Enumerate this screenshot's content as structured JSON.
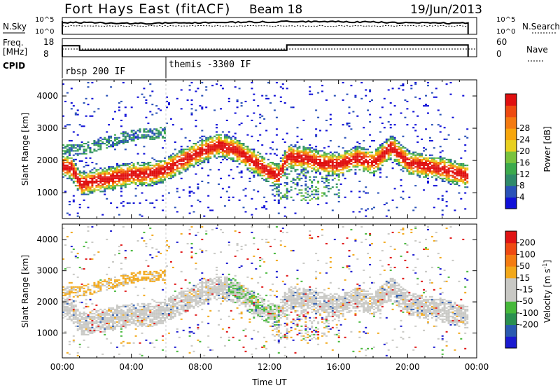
{
  "header": {
    "station": "Fort Hays East (fitACF)",
    "beam": "Beam 18",
    "date": "19/Jun/2013"
  },
  "nsky_panel": {
    "left_label": "N.Sky",
    "right_label": "N.Search",
    "left_ticks": [
      "10^5",
      "10^0"
    ],
    "right_ticks": [
      "10^5",
      "10^0"
    ]
  },
  "freq_panel": {
    "left_label_1": "Freq.",
    "left_label_2": "[MHz]",
    "left_ticks": [
      "18",
      "8"
    ],
    "right_ticks": [
      "60",
      "0"
    ],
    "right_label": "Nave",
    "freq_steps": [
      {
        "from_hour": 0.0,
        "to_hour": 1.0,
        "mhz": 14.5
      },
      {
        "from_hour": 1.0,
        "to_hour": 13.0,
        "mhz": 11.0
      },
      {
        "from_hour": 13.0,
        "to_hour": 23.5,
        "mhz": 15.0
      }
    ]
  },
  "cpid": {
    "label": "CPID",
    "segments": [
      {
        "start_hour": 0.0,
        "text": "rbsp 200 IF"
      },
      {
        "start_hour": 6.0,
        "text": "themis -3300 IF"
      }
    ]
  },
  "chart_data": [
    {
      "type": "heatmap",
      "name": "power",
      "ylabel": "Slant Range [km]",
      "xlabel": "",
      "xlim_hours": [
        0,
        24
      ],
      "ylim": [
        200,
        4500
      ],
      "y_ticks": [
        "1000",
        "2000",
        "3000",
        "4000"
      ],
      "x_ticks": [
        "00:00",
        "04:00",
        "08:00",
        "12:00",
        "16:00",
        "20:00",
        "00:00"
      ],
      "colorbar": {
        "label": "Power [dB]",
        "ticks": [
          "4",
          "8",
          "12",
          "16",
          "20",
          "24",
          "28"
        ],
        "colors": [
          "#1010d8",
          "#2a52b8",
          "#2f8a6a",
          "#3caa4c",
          "#79c33d",
          "#e8d020",
          "#f7a60c",
          "#f47a10",
          "#ee4a10",
          "#e01010"
        ]
      },
      "main_band_km": [
        [
          0,
          1800
        ],
        [
          0.5,
          1750
        ],
        [
          1,
          1250
        ],
        [
          2,
          1350
        ],
        [
          3,
          1450
        ],
        [
          4,
          1550
        ],
        [
          5,
          1550
        ],
        [
          6,
          1700
        ],
        [
          7,
          2000
        ],
        [
          8,
          2250
        ],
        [
          9,
          2450
        ],
        [
          10,
          2300
        ],
        [
          11,
          1950
        ],
        [
          12,
          1600
        ],
        [
          12.5,
          1500
        ],
        [
          13,
          2100
        ],
        [
          14,
          2050
        ],
        [
          15,
          1900
        ],
        [
          16,
          1850
        ],
        [
          17,
          2050
        ],
        [
          18,
          1900
        ],
        [
          19,
          2400
        ],
        [
          20,
          1900
        ],
        [
          21,
          1800
        ],
        [
          22,
          1700
        ],
        [
          23,
          1550
        ],
        [
          23.5,
          1500
        ]
      ],
      "upper_band_km": [
        [
          0,
          2300
        ],
        [
          1,
          2300
        ],
        [
          2,
          2450
        ],
        [
          3,
          2600
        ],
        [
          4,
          2750
        ],
        [
          5,
          2800
        ],
        [
          6,
          2850
        ]
      ]
    },
    {
      "type": "heatmap",
      "name": "velocity",
      "ylabel": "Slant Range [km]",
      "xlabel": "Time UT",
      "xlim_hours": [
        0,
        24
      ],
      "ylim": [
        200,
        4500
      ],
      "y_ticks": [
        "1000",
        "2000",
        "3000",
        "4000"
      ],
      "x_ticks": [
        "00:00",
        "04:00",
        "08:00",
        "12:00",
        "16:00",
        "20:00",
        "00:00"
      ],
      "colorbar": {
        "label": "Velocity [m s",
        "label_sup": "-1",
        "label_end": "]",
        "ticks": [
          "200",
          "100",
          "50",
          "15",
          "-15",
          "-50",
          "-100",
          "-200"
        ],
        "colors": [
          "#1a1ad0",
          "#2a5ab0",
          "#2a9050",
          "#46b83a",
          "#c8c8c4",
          "#c8c8c4",
          "#f2a81a",
          "#f47c12",
          "#ef4a12",
          "#e01414"
        ]
      }
    }
  ]
}
